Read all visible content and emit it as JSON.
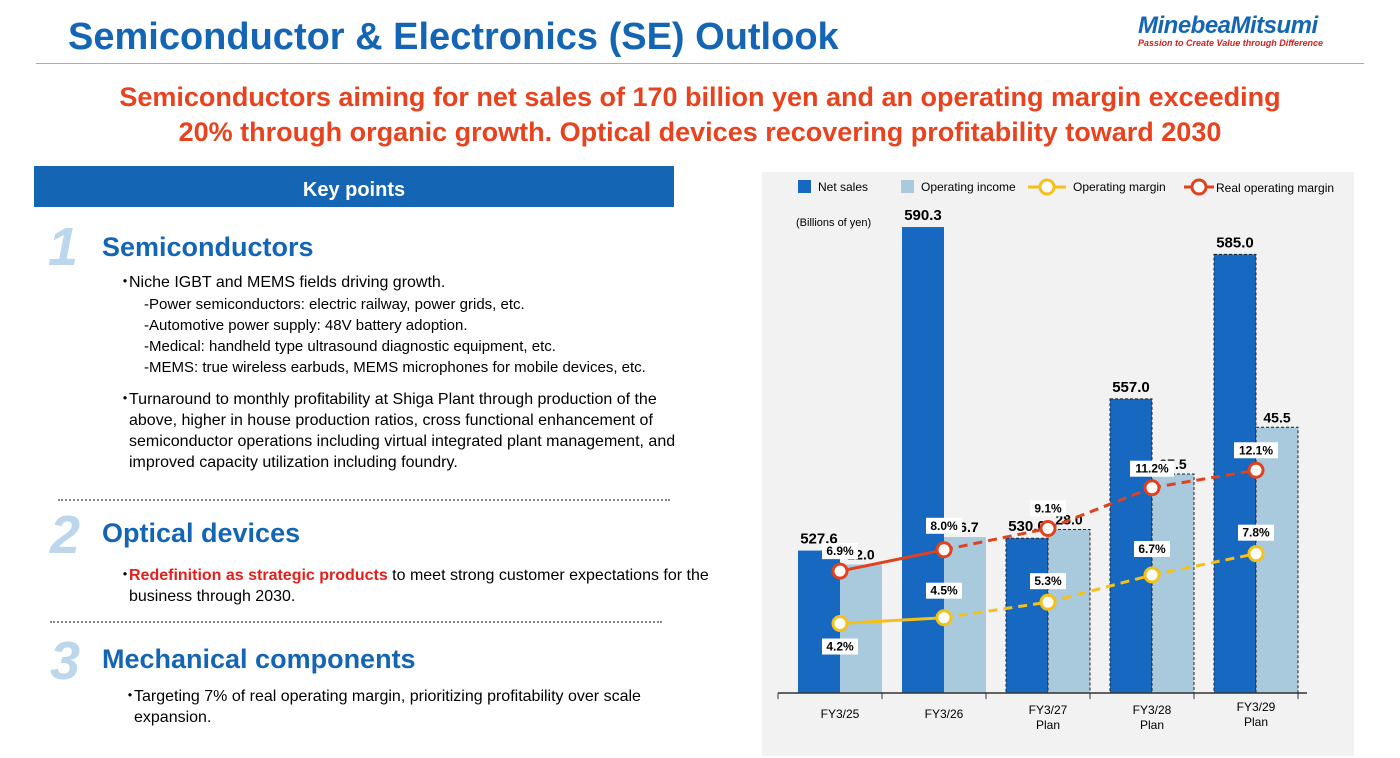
{
  "header": {
    "title": "Semiconductor & Electronics (SE) Outlook",
    "logo_name": "MinebeaMitsumi",
    "logo_tagline": "Passion to Create Value through Difference",
    "headline_line1": "Semiconductors aiming for net sales of 170 billion yen and an operating margin exceeding",
    "headline_line2": "20% through organic growth. Optical devices recovering profitability toward 2030"
  },
  "key_points": {
    "header": "Key points",
    "sections": [
      {
        "number": "1",
        "title": "Semiconductors",
        "bullets": [
          "Niche IGBT and MEMS fields driving growth.",
          "Turnaround to monthly profitability at Shiga Plant through production of the above, higher in house production ratios, cross functional enhancement of semiconductor operations including virtual integrated plant management, and improved capacity utilization including foundry."
        ],
        "subitems": [
          "-Power semiconductors: electric railway, power grids, etc.",
          "-Automotive power supply: 48V battery adoption.",
          "-Medical: handheld type ultrasound diagnostic equipment, etc.",
          "-MEMS: true wireless earbuds, MEMS microphones for mobile devices, etc."
        ]
      },
      {
        "number": "2",
        "title": "Optical devices",
        "bullet_highlight": "Redefinition as strategic products",
        "bullet_rest": " to meet strong customer expectations for the business through 2030."
      },
      {
        "number": "3",
        "title": "Mechanical components",
        "bullets": [
          "Targeting 7% of real operating margin, prioritizing profitability over scale expansion."
        ]
      }
    ]
  },
  "colors": {
    "brand_blue": "#1466b4",
    "net_sales": "#1668c0",
    "operating_income": "#a9c9dc",
    "operating_margin": "#f3c11a",
    "real_operating_margin": "#e0421e",
    "headline": "#e8421e",
    "highlight_red": "#e5201c"
  },
  "chart_data": {
    "type": "bar",
    "unit_label": "(Billions of yen)",
    "categories": [
      [
        "FY3/25"
      ],
      [
        "FY3/26"
      ],
      [
        "FY3/27",
        "Plan"
      ],
      [
        "FY3/28",
        "Plan"
      ],
      [
        "FY3/29",
        "Plan"
      ]
    ],
    "planned": [
      false,
      false,
      true,
      true,
      true
    ],
    "series": [
      {
        "name": "Net sales",
        "kind": "bar",
        "values": [
          527.6,
          590.3,
          530.0,
          557.0,
          585.0
        ],
        "labels": [
          "527.6",
          "590.3",
          "530.0",
          "557.0",
          "585.0"
        ]
      },
      {
        "name": "Operating income",
        "kind": "bar",
        "values": [
          22.0,
          26.7,
          28.0,
          37.5,
          45.5
        ],
        "labels": [
          "22.0",
          "26.7",
          "28.0",
          "37.5",
          "45.5"
        ]
      },
      {
        "name": "Operating margin",
        "kind": "line",
        "unit": "%",
        "values": [
          4.2,
          4.5,
          5.3,
          6.7,
          7.8
        ],
        "labels": [
          "4.2%",
          "4.5%",
          "5.3%",
          "6.7%",
          "7.8%"
        ]
      },
      {
        "name": "Real operating margin",
        "kind": "line",
        "unit": "%",
        "values": [
          6.9,
          8.0,
          9.1,
          11.2,
          12.1
        ],
        "labels": [
          "6.9%",
          "8.0%",
          "9.1%",
          "11.2%",
          "12.1%"
        ]
      }
    ],
    "legend_position": "top",
    "grid": false
  }
}
